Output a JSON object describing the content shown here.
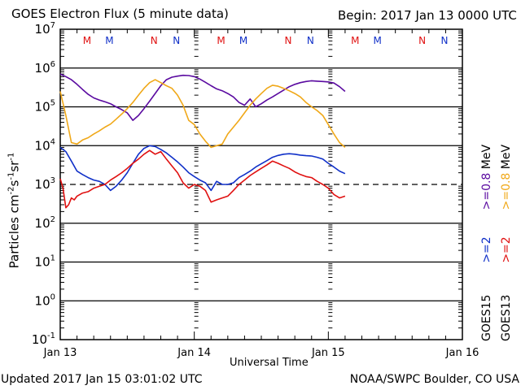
{
  "header": {
    "title": "GOES Electron Flux (5 minute data)",
    "begin": "Begin: 2017 Jan 13 0000 UTC"
  },
  "footer": {
    "updated": "Updated 2017 Jan 15 03:01:02 UTC",
    "credit": "NOAA/SWPC Boulder, CO USA"
  },
  "colors": {
    "goes15_2mev": "#1030c8",
    "goes13_2mev": "#e01010",
    "goes15_08mev": "#5a0aa0",
    "goes13_08mev": "#f0a818",
    "axis": "#000000"
  },
  "legend": {
    "goes15": {
      "sat": "GOES15",
      "e2": ">=2",
      "e08": ">=0.8",
      "unit": "MeV"
    },
    "goes13": {
      "sat": "GOES13",
      "e2": ">=2",
      "e08": ">=0.8",
      "unit": "MeV"
    }
  },
  "chart_data": {
    "type": "line",
    "title": "GOES Electron Flux (5 minute data)",
    "xlabel": "Universal Time",
    "ylabel": "Particles cm-2 s-1 sr-1",
    "yscale": "log",
    "ylim": [
      0.1,
      10000000
    ],
    "xlim_hours": [
      0,
      72
    ],
    "x_ticks": [
      "Jan 13",
      "Jan 14",
      "Jan 15",
      "Jan 16"
    ],
    "y_ticks": [
      {
        "base": "10",
        "exp": "7"
      },
      {
        "base": "10",
        "exp": "6"
      },
      {
        "base": "10",
        "exp": "5"
      },
      {
        "base": "10",
        "exp": "4"
      },
      {
        "base": "10",
        "exp": "3"
      },
      {
        "base": "10",
        "exp": "2"
      },
      {
        "base": "10",
        "exp": "1"
      },
      {
        "base": "10",
        "exp": "0"
      },
      {
        "base": "10",
        "exp": "-1"
      }
    ],
    "threshold": {
      "value": 1000,
      "style": "dashed"
    },
    "markers": [
      {
        "label": "M",
        "hour": 4.8,
        "color": "#e01010"
      },
      {
        "label": "M",
        "hour": 8.8,
        "color": "#1030c8"
      },
      {
        "label": "N",
        "hour": 16.8,
        "color": "#e01010"
      },
      {
        "label": "N",
        "hour": 20.8,
        "color": "#1030c8"
      },
      {
        "label": "M",
        "hour": 28.8,
        "color": "#e01010"
      },
      {
        "label": "M",
        "hour": 32.8,
        "color": "#1030c8"
      },
      {
        "label": "N",
        "hour": 40.8,
        "color": "#e01010"
      },
      {
        "label": "N",
        "hour": 44.8,
        "color": "#1030c8"
      },
      {
        "label": "M",
        "hour": 52.8,
        "color": "#e01010"
      },
      {
        "label": "M",
        "hour": 56.8,
        "color": "#1030c8"
      },
      {
        "label": "N",
        "hour": 64.8,
        "color": "#e01010"
      },
      {
        "label": "N",
        "hour": 68.8,
        "color": "#1030c8"
      }
    ],
    "series": [
      {
        "name": "GOES15 >=0.8 MeV",
        "color": "#5a0aa0",
        "x": [
          0,
          1,
          2,
          3,
          4,
          5,
          6,
          7,
          8,
          9,
          10,
          11,
          12,
          13,
          14,
          15,
          16,
          17,
          18,
          19,
          20,
          21,
          22,
          23,
          24,
          25,
          26,
          27,
          28,
          29,
          30,
          31,
          32,
          33,
          34,
          35,
          36,
          37,
          38,
          39,
          40,
          41,
          42,
          43,
          44,
          45,
          46,
          47,
          48,
          49,
          50,
          51
        ],
        "values": [
          700000,
          600000,
          500000,
          380000,
          280000,
          210000,
          170000,
          150000,
          135000,
          120000,
          100000,
          85000,
          70000,
          45000,
          60000,
          90000,
          140000,
          220000,
          350000,
          500000,
          580000,
          620000,
          650000,
          640000,
          600000,
          520000,
          430000,
          350000,
          290000,
          260000,
          220000,
          180000,
          130000,
          110000,
          160000,
          100000,
          120000,
          150000,
          180000,
          220000,
          270000,
          330000,
          380000,
          420000,
          450000,
          470000,
          460000,
          450000,
          440000,
          410000,
          330000,
          250000
        ]
      },
      {
        "name": "GOES13 >=0.8 MeV",
        "color": "#f0a818",
        "x": [
          0,
          1,
          2,
          3,
          4,
          5,
          6,
          7,
          8,
          9,
          10,
          11,
          12,
          13,
          14,
          15,
          16,
          17,
          18,
          19,
          20,
          21,
          22,
          23,
          24,
          25,
          26,
          27,
          28,
          29,
          30,
          31,
          32,
          33,
          34,
          35,
          36,
          37,
          38,
          39,
          40,
          41,
          42,
          43,
          44,
          45,
          46,
          47,
          48,
          49,
          50,
          51
        ],
        "values": [
          250000,
          60000,
          12000,
          11000,
          14000,
          16000,
          20000,
          24000,
          30000,
          36000,
          48000,
          65000,
          90000,
          130000,
          200000,
          300000,
          420000,
          500000,
          420000,
          350000,
          300000,
          200000,
          110000,
          45000,
          35000,
          20000,
          13000,
          9000,
          10000,
          11000,
          20000,
          30000,
          45000,
          70000,
          110000,
          160000,
          220000,
          300000,
          360000,
          340000,
          300000,
          260000,
          220000,
          180000,
          130000,
          100000,
          80000,
          60000,
          35000,
          20000,
          12000,
          9000
        ]
      },
      {
        "name": "GOES15 >=2 MeV",
        "color": "#1030c8",
        "x": [
          0,
          1,
          2,
          3,
          4,
          5,
          6,
          7,
          8,
          9,
          10,
          11,
          12,
          13,
          14,
          15,
          16,
          17,
          18,
          19,
          20,
          21,
          22,
          23,
          24,
          25,
          26,
          27,
          28,
          29,
          30,
          31,
          32,
          33,
          34,
          35,
          36,
          37,
          38,
          39,
          40,
          41,
          42,
          43,
          44,
          45,
          46,
          47,
          48,
          49,
          50,
          51
        ],
        "values": [
          9000,
          7000,
          4000,
          2200,
          1800,
          1500,
          1300,
          1200,
          1000,
          700,
          900,
          1300,
          2000,
          3500,
          6000,
          8500,
          10000,
          9500,
          8000,
          6500,
          5000,
          3800,
          2800,
          2000,
          1600,
          1300,
          1100,
          700,
          1200,
          1000,
          1000,
          1100,
          1500,
          1800,
          2200,
          2800,
          3400,
          4100,
          5000,
          5600,
          6000,
          6200,
          6000,
          5700,
          5500,
          5400,
          5000,
          4500,
          3500,
          2800,
          2200,
          1900
        ]
      },
      {
        "name": "GOES13 >=2 MeV",
        "color": "#e01010",
        "x": [
          0,
          0.5,
          1,
          1.5,
          2,
          2.5,
          3,
          4,
          5,
          6,
          7,
          8,
          9,
          10,
          11,
          12,
          13,
          14,
          15,
          16,
          17,
          18,
          19,
          20,
          21,
          22,
          23,
          24,
          25,
          26,
          27,
          28,
          29,
          30,
          31,
          32,
          33,
          34,
          35,
          36,
          37,
          38,
          39,
          40,
          41,
          42,
          43,
          44,
          45,
          46,
          47,
          48,
          49,
          50,
          51
        ],
        "values": [
          1400,
          800,
          250,
          300,
          450,
          400,
          500,
          600,
          650,
          800,
          900,
          1000,
          1300,
          1600,
          2000,
          2600,
          3500,
          4500,
          6000,
          7500,
          6000,
          7000,
          4500,
          3000,
          2000,
          1100,
          800,
          1000,
          900,
          700,
          350,
          400,
          450,
          500,
          700,
          1000,
          1300,
          1700,
          2100,
          2600,
          3200,
          4000,
          3500,
          3000,
          2600,
          2100,
          1800,
          1600,
          1500,
          1200,
          1000,
          800,
          550,
          450,
          500
        ]
      }
    ]
  }
}
